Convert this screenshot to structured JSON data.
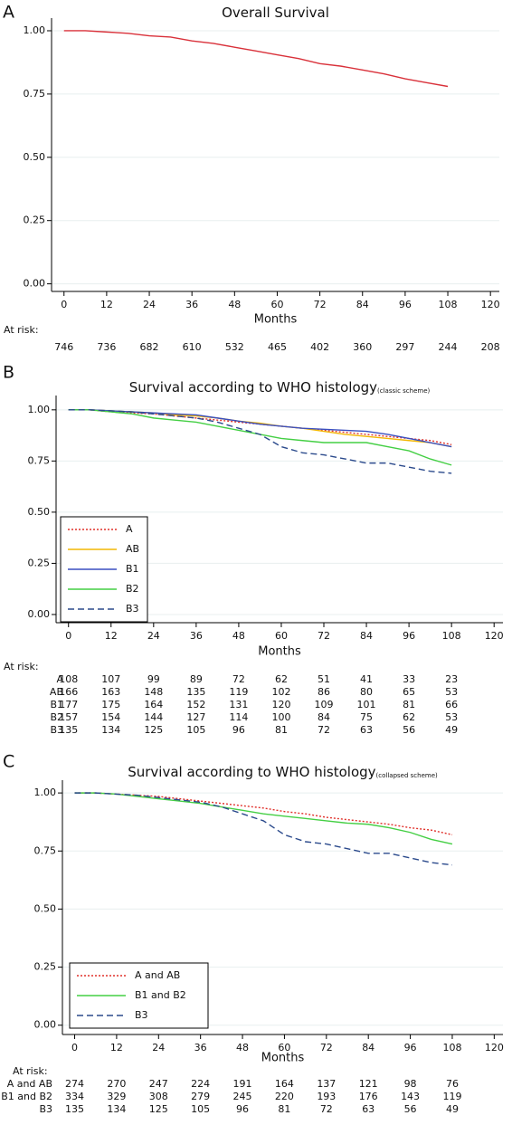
{
  "chart_data": [
    {
      "type": "line",
      "panel": "A",
      "title": "Overall Survival",
      "xlabel": "Months",
      "xlim": [
        -3.5,
        122.5
      ],
      "xticks": [
        0,
        12,
        24,
        36,
        48,
        60,
        72,
        84,
        96,
        108,
        120
      ],
      "ylim": [
        -0.03,
        1.05
      ],
      "yticks": [
        {
          "value": 0,
          "label": "0.00"
        },
        0.25,
        {
          "value": 0.5,
          "label": "0.50"
        },
        0.75,
        {
          "value": 1,
          "label": "1.00"
        }
      ],
      "grid": true,
      "series": [
        {
          "color": "#d9313a",
          "dash": "solid",
          "x": [
            0,
            6,
            12,
            18,
            24,
            30,
            36,
            42,
            48,
            54,
            60,
            66,
            72,
            78,
            84,
            90,
            96,
            102,
            108
          ],
          "values": [
            1,
            1,
            0.995,
            0.99,
            0.98,
            0.975,
            0.96,
            0.95,
            0.935,
            0.92,
            0.905,
            0.89,
            0.87,
            0.86,
            0.845,
            0.83,
            0.81,
            0.795,
            0.78
          ]
        }
      ],
      "at_risk": {
        "label": "At risk:",
        "rows": [
          {
            "values": [
              746,
              736,
              682,
              610,
              532,
              465,
              402,
              360,
              297,
              244,
              208
            ]
          }
        ]
      }
    },
    {
      "type": "line",
      "panel": "B",
      "title": "Survival according to WHO histology",
      "title_subscript": "(classic scheme)",
      "xlabel": "Months",
      "xlim": [
        -3.5,
        122.5
      ],
      "xticks": [
        0,
        12,
        24,
        36,
        48,
        60,
        72,
        84,
        96,
        108,
        120
      ],
      "ylim": [
        -0.04,
        1.07
      ],
      "yticks": [
        {
          "value": 0,
          "label": "0.00"
        },
        0.25,
        {
          "value": 0.5,
          "label": "0.50"
        },
        0.75,
        {
          "value": 1,
          "label": "1.00"
        }
      ],
      "grid": true,
      "legend": "lower left",
      "series": [
        {
          "name": "A",
          "color": "#e0302a",
          "dash": "dotted",
          "x": [
            0,
            6,
            12,
            18,
            24,
            30,
            36,
            42,
            48,
            54,
            60,
            66,
            72,
            78,
            84,
            90,
            96,
            102,
            108
          ],
          "values": [
            1,
            1,
            0.99,
            0.985,
            0.98,
            0.97,
            0.96,
            0.95,
            0.94,
            0.93,
            0.92,
            0.91,
            0.9,
            0.89,
            0.88,
            0.87,
            0.86,
            0.85,
            0.83
          ]
        },
        {
          "name": "AB",
          "color": "#f2b705",
          "dash": "solid",
          "x": [
            0,
            6,
            12,
            18,
            24,
            30,
            36,
            42,
            48,
            54,
            60,
            66,
            72,
            78,
            84,
            90,
            96,
            102,
            108
          ],
          "values": [
            1,
            1,
            0.995,
            0.99,
            0.985,
            0.975,
            0.97,
            0.96,
            0.945,
            0.935,
            0.92,
            0.91,
            0.895,
            0.88,
            0.87,
            0.86,
            0.85,
            0.84,
            0.82
          ]
        },
        {
          "name": "B1",
          "color": "#3a4fc0",
          "dash": "solid",
          "x": [
            0,
            6,
            12,
            18,
            24,
            30,
            36,
            42,
            48,
            54,
            60,
            66,
            72,
            78,
            84,
            90,
            96,
            102,
            108
          ],
          "values": [
            1,
            1,
            0.995,
            0.99,
            0.985,
            0.98,
            0.975,
            0.96,
            0.945,
            0.93,
            0.92,
            0.91,
            0.905,
            0.9,
            0.895,
            0.88,
            0.86,
            0.84,
            0.82
          ]
        },
        {
          "name": "B2",
          "color": "#44cf44",
          "dash": "solid",
          "x": [
            0,
            6,
            12,
            18,
            24,
            30,
            36,
            42,
            48,
            54,
            60,
            66,
            72,
            78,
            84,
            90,
            96,
            102,
            108
          ],
          "values": [
            1,
            1,
            0.99,
            0.98,
            0.96,
            0.95,
            0.94,
            0.92,
            0.9,
            0.88,
            0.86,
            0.85,
            0.84,
            0.84,
            0.84,
            0.82,
            0.8,
            0.76,
            0.73
          ]
        },
        {
          "name": "B3",
          "color": "#2b4a8c",
          "dash": "dashed",
          "x": [
            0,
            6,
            12,
            18,
            24,
            30,
            36,
            42,
            48,
            54,
            60,
            66,
            72,
            78,
            84,
            90,
            96,
            102,
            108
          ],
          "values": [
            1,
            1,
            0.995,
            0.99,
            0.98,
            0.97,
            0.96,
            0.94,
            0.91,
            0.88,
            0.82,
            0.79,
            0.78,
            0.76,
            0.74,
            0.74,
            0.72,
            0.7,
            0.69
          ]
        }
      ],
      "at_risk": {
        "label": "At risk:",
        "rows": [
          {
            "name": "A",
            "values": [
              108,
              107,
              99,
              89,
              72,
              62,
              51,
              41,
              33,
              23
            ]
          },
          {
            "name": "AB",
            "values": [
              166,
              163,
              148,
              135,
              119,
              102,
              86,
              80,
              65,
              53
            ]
          },
          {
            "name": "B1",
            "values": [
              177,
              175,
              164,
              152,
              131,
              120,
              109,
              101,
              81,
              66
            ]
          },
          {
            "name": "B2",
            "values": [
              157,
              154,
              144,
              127,
              114,
              100,
              84,
              75,
              62,
              53
            ]
          },
          {
            "name": "B3",
            "values": [
              135,
              134,
              125,
              105,
              96,
              81,
              72,
              63,
              56,
              49
            ]
          }
        ]
      }
    },
    {
      "type": "line",
      "panel": "C",
      "title": "Survival according to WHO histology",
      "title_subscript": "(collapsed scheme)",
      "xlabel": "Months",
      "xlim": [
        -3.5,
        122.5
      ],
      "xticks": [
        0,
        12,
        24,
        36,
        48,
        60,
        72,
        84,
        96,
        108,
        120
      ],
      "ylim": [
        -0.04,
        1.055
      ],
      "yticks": [
        {
          "value": 0,
          "label": "0.00"
        },
        0.25,
        {
          "value": 0.5,
          "label": "0.50"
        },
        0.75,
        {
          "value": 1,
          "label": "1.00"
        }
      ],
      "grid": true,
      "legend": "lower left",
      "series": [
        {
          "name": "A and AB",
          "color": "#e0302a",
          "dash": "dotted",
          "x": [
            0,
            6,
            12,
            18,
            24,
            30,
            36,
            42,
            48,
            54,
            60,
            66,
            72,
            78,
            84,
            90,
            96,
            102,
            108
          ],
          "values": [
            1,
            1,
            0.995,
            0.99,
            0.985,
            0.975,
            0.965,
            0.955,
            0.945,
            0.935,
            0.92,
            0.91,
            0.895,
            0.885,
            0.875,
            0.865,
            0.85,
            0.84,
            0.82
          ]
        },
        {
          "name": "B1 and B2",
          "color": "#44cf44",
          "dash": "solid",
          "x": [
            0,
            6,
            12,
            18,
            24,
            30,
            36,
            42,
            48,
            54,
            60,
            66,
            72,
            78,
            84,
            90,
            96,
            102,
            108
          ],
          "values": [
            1,
            1,
            0.995,
            0.985,
            0.975,
            0.965,
            0.955,
            0.94,
            0.925,
            0.91,
            0.9,
            0.89,
            0.88,
            0.87,
            0.865,
            0.85,
            0.83,
            0.8,
            0.78
          ]
        },
        {
          "name": "B3",
          "color": "#2b4a8c",
          "dash": "dashed",
          "x": [
            0,
            6,
            12,
            18,
            24,
            30,
            36,
            42,
            48,
            54,
            60,
            66,
            72,
            78,
            84,
            90,
            96,
            102,
            108
          ],
          "values": [
            1,
            1,
            0.995,
            0.99,
            0.98,
            0.97,
            0.96,
            0.94,
            0.91,
            0.88,
            0.82,
            0.79,
            0.78,
            0.76,
            0.74,
            0.74,
            0.72,
            0.7,
            0.69
          ]
        }
      ],
      "at_risk": {
        "label": "At risk:",
        "rows": [
          {
            "name": "A and AB",
            "values": [
              274,
              270,
              247,
              224,
              191,
              164,
              137,
              121,
              98,
              76
            ]
          },
          {
            "name": "B1 and B2",
            "values": [
              334,
              329,
              308,
              279,
              245,
              220,
              193,
              176,
              143,
              119
            ]
          },
          {
            "name": "B3",
            "values": [
              135,
              134,
              125,
              105,
              96,
              81,
              72,
              63,
              56,
              49
            ]
          }
        ]
      }
    }
  ]
}
